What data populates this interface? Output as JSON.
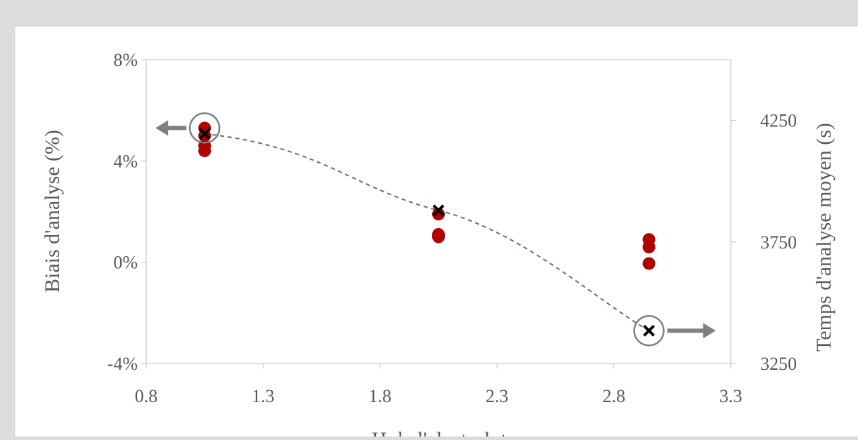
{
  "chart_data": {
    "type": "scatter",
    "title": "",
    "xlabel": "pH de l'electrolyte",
    "ylabel": "Biais d'analyse (%)",
    "y2label": "Temps d'analyse moyen (s)",
    "xlim": [
      0.8,
      3.3
    ],
    "ylim": [
      -4,
      8
    ],
    "y2lim": [
      3250,
      4500
    ],
    "x_ticks": [
      "0.8",
      "1.3",
      "1.8",
      "2.3",
      "2.8",
      "3.3"
    ],
    "y_ticks": [
      "-4%",
      "0%",
      "4%",
      "8%"
    ],
    "y2_ticks": [
      "3250",
      "3750",
      "4250"
    ],
    "grid": false,
    "legend": "none",
    "series": [
      {
        "axis": "left",
        "marker": "circle",
        "color": "#b00000",
        "points": [
          {
            "x": 1.05,
            "y": 5.3
          },
          {
            "x": 1.05,
            "y": 5.0
          },
          {
            "x": 1.05,
            "y": 4.6
          },
          {
            "x": 1.05,
            "y": 4.4
          },
          {
            "x": 2.05,
            "y": 1.9
          },
          {
            "x": 2.05,
            "y": 1.1
          },
          {
            "x": 2.05,
            "y": 1.0
          },
          {
            "x": 2.95,
            "y": 0.9
          },
          {
            "x": 2.95,
            "y": 0.6
          },
          {
            "x": 2.95,
            "y": -0.05
          }
        ]
      },
      {
        "axis": "right",
        "marker": "x",
        "color": "#000000",
        "line": "dashed",
        "line_color": "#7f6a5a",
        "points": [
          {
            "x": 1.05,
            "y": 4195
          },
          {
            "x": 2.05,
            "y": 3880
          },
          {
            "x": 2.95,
            "y": 3385
          }
        ]
      }
    ],
    "annotations": [
      {
        "type": "circle-arrow",
        "target_x": 1.05,
        "target_y": 5.3,
        "axis": "left",
        "direction": "left"
      },
      {
        "type": "circle-arrow",
        "target_x": 2.95,
        "target_y": 3385,
        "axis": "right",
        "direction": "right"
      }
    ],
    "annotation_color": "#808080"
  }
}
